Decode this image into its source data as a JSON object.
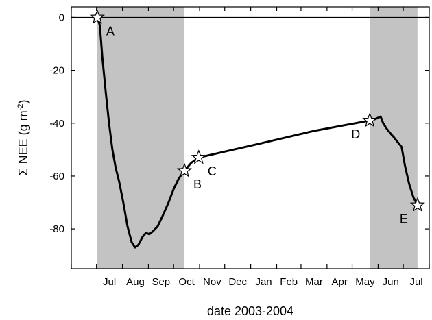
{
  "chart_data": {
    "type": "line",
    "xlabel": "date 2003-2004",
    "ylabel_symbol": "Σ",
    "ylabel_main": "NEE  (g m",
    "ylabel_sup": "-2",
    "ylabel_close": ")",
    "ylim": [
      -95,
      4
    ],
    "yticks": [
      0,
      -20,
      -40,
      -60,
      -80
    ],
    "grid": false,
    "zero_line": true,
    "x_categories": [
      "Jul",
      "Aug",
      "Sep",
      "Oct",
      "Nov",
      "Dec",
      "Jan",
      "Feb",
      "Mar",
      "Apr",
      "May",
      "Jun",
      "Jul"
    ],
    "x_domain": [
      "2003-06-01",
      "2004-08-01"
    ],
    "shaded_periods": [
      {
        "start": "2003-07-02",
        "end": "2003-10-14"
      },
      {
        "start": "2004-05-22",
        "end": "2004-07-18"
      }
    ],
    "series": [
      {
        "points": [
          {
            "date": "2003-07-02",
            "value": 0
          },
          {
            "date": "2003-07-05",
            "value": -3
          },
          {
            "date": "2003-07-08",
            "value": -15
          },
          {
            "date": "2003-07-12",
            "value": -28
          },
          {
            "date": "2003-07-16",
            "value": -40
          },
          {
            "date": "2003-07-20",
            "value": -50
          },
          {
            "date": "2003-07-24",
            "value": -57
          },
          {
            "date": "2003-07-28",
            "value": -62
          },
          {
            "date": "2003-08-02",
            "value": -70
          },
          {
            "date": "2003-08-07",
            "value": -79
          },
          {
            "date": "2003-08-12",
            "value": -85
          },
          {
            "date": "2003-08-16",
            "value": -87
          },
          {
            "date": "2003-08-20",
            "value": -86
          },
          {
            "date": "2003-08-25",
            "value": -83
          },
          {
            "date": "2003-08-29",
            "value": -81.5
          },
          {
            "date": "2003-09-02",
            "value": -82
          },
          {
            "date": "2003-09-06",
            "value": -81
          },
          {
            "date": "2003-09-12",
            "value": -79
          },
          {
            "date": "2003-09-18",
            "value": -75
          },
          {
            "date": "2003-09-25",
            "value": -70
          },
          {
            "date": "2003-10-01",
            "value": -65
          },
          {
            "date": "2003-10-07",
            "value": -61
          },
          {
            "date": "2003-10-14",
            "value": -58
          },
          {
            "date": "2003-10-22",
            "value": -55
          },
          {
            "date": "2003-10-31",
            "value": -53
          },
          {
            "date": "2004-01-15",
            "value": -47.5
          },
          {
            "date": "2004-03-15",
            "value": -43
          },
          {
            "date": "2004-05-22",
            "value": -39
          },
          {
            "date": "2004-05-28",
            "value": -38.5
          },
          {
            "date": "2004-06-04",
            "value": -37.5
          },
          {
            "date": "2004-06-07",
            "value": -40
          },
          {
            "date": "2004-06-11",
            "value": -42
          },
          {
            "date": "2004-06-16",
            "value": -44
          },
          {
            "date": "2004-06-19",
            "value": -45
          },
          {
            "date": "2004-06-24",
            "value": -47
          },
          {
            "date": "2004-06-29",
            "value": -49
          },
          {
            "date": "2004-07-03",
            "value": -56
          },
          {
            "date": "2004-07-08",
            "value": -63
          },
          {
            "date": "2004-07-13",
            "value": -68
          },
          {
            "date": "2004-07-18",
            "value": -71
          }
        ]
      }
    ],
    "markers": [
      {
        "label": "A",
        "date": "2003-07-02",
        "value": 0,
        "label_position": "below-right"
      },
      {
        "label": "B",
        "date": "2003-10-14",
        "value": -58,
        "label_position": "below-right"
      },
      {
        "label": "C",
        "date": "2003-10-31",
        "value": -53,
        "label_position": "below-right"
      },
      {
        "label": "D",
        "date": "2004-05-22",
        "value": -39,
        "label_position": "below-left"
      },
      {
        "label": "E",
        "date": "2004-07-18",
        "value": -71,
        "label_position": "below-left"
      }
    ]
  }
}
